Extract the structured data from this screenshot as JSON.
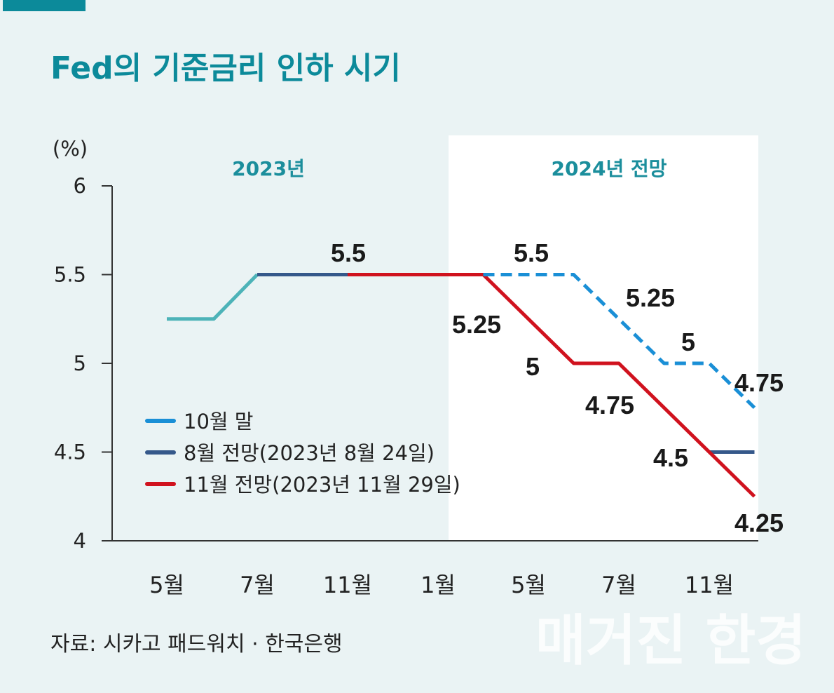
{
  "title": "Fed의 기준금리 인하 시기",
  "source": "자료: 시카고 패드워치 · 한국은행",
  "watermark": "매거진 한경",
  "colors": {
    "accent": "#0c8a9a",
    "background": "#eaf3f4",
    "forecast_panel": "#ffffff"
  },
  "chart_data": {
    "type": "line",
    "ylabel": "(%)",
    "ylim": [
      4,
      6
    ],
    "yticks": [
      "6",
      "5.5",
      "5",
      "4.5",
      "4"
    ],
    "ytick_values": [
      6,
      5.5,
      5,
      4.5,
      4
    ],
    "categories": [
      "5월",
      "7월",
      "11월",
      "1월",
      "5월",
      "7월",
      "11월"
    ],
    "periods": [
      {
        "label": "2023년"
      },
      {
        "label": "2024년 전망"
      }
    ],
    "grid": false,
    "legend_position": "left-middle",
    "series": [
      {
        "color": "#4db3b8",
        "dashed": false,
        "points": [
          [
            0,
            5.25
          ],
          [
            0.52,
            5.25
          ],
          [
            1,
            5.5
          ]
        ]
      },
      {
        "name": "8월 전망(2023년 8월 24일)",
        "color": "#35588a",
        "dashed": false,
        "points": [
          [
            1,
            5.5
          ],
          [
            2,
            5.5
          ]
        ]
      },
      {
        "name": "8월 전망(2023년 8월 24일)",
        "color": "#35588a",
        "dashed": false,
        "points": [
          [
            6,
            4.5
          ],
          [
            6.5,
            4.5
          ]
        ]
      },
      {
        "name": "11월 전망(2023년 11월 29일)",
        "color": "#d0121e",
        "dashed": false,
        "points": [
          [
            2,
            5.5
          ],
          [
            3.5,
            5.5
          ],
          [
            4.5,
            5.0
          ],
          [
            5,
            5.0
          ],
          [
            6.5,
            4.25
          ]
        ]
      },
      {
        "name": "10월 말",
        "color": "#1a8fd6",
        "dashed": true,
        "points": [
          [
            3.5,
            5.5
          ],
          [
            4.5,
            5.5
          ],
          [
            5.5,
            5.0
          ],
          [
            6,
            5.0
          ],
          [
            6.5,
            4.75
          ]
        ]
      }
    ],
    "legend": [
      {
        "label": "10월 말",
        "color": "#1a8fd6"
      },
      {
        "label": "8월 전망(2023년 8월 24일)",
        "color": "#35588a"
      },
      {
        "label": "11월 전망(2023년 11월 29일)",
        "color": "#d0121e"
      }
    ],
    "data_labels": [
      "5.5",
      "5.5",
      "5.25",
      "5",
      "4.75",
      "5.25",
      "5",
      "4.75",
      "4.5",
      "4.25"
    ]
  }
}
